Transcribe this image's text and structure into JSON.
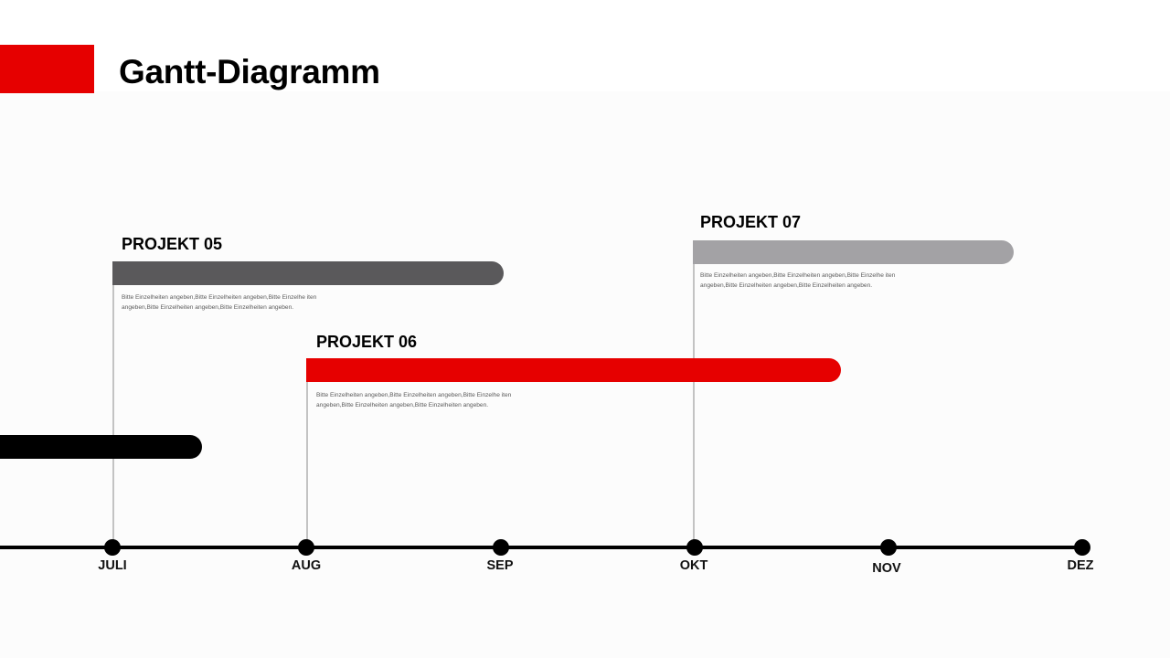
{
  "slide": {
    "title": "Gantt-Diagramm",
    "accent_color": "#e60000"
  },
  "timeline": {
    "months": [
      "JULI",
      "AUG",
      "SEP",
      "OKT",
      "NOV",
      "DEZ"
    ]
  },
  "projects": [
    {
      "label": "PROJEKT 05",
      "color": "#5a595b",
      "description": "Bitte Einzelheiten angeben,Bitte Einzelheiten angeben,Bitte Einzelhe iten angeben,Bitte Einzelheiten angeben,Bitte Einzelheiten angeben."
    },
    {
      "label": "PROJEKT 06",
      "color": "#e60000",
      "description": "Bitte Einzelheiten angeben,Bitte Einzelheiten angeben,Bitte Einzelhe iten angeben,Bitte Einzelheiten angeben,Bitte Einzelheiten angeben."
    },
    {
      "label": "PROJEKT 07",
      "color": "#a3a2a5",
      "description": "Bitte Einzelheiten angeben,Bitte Einzelheiten angeben,Bitte Einzelhe iten angeben,Bitte Einzelheiten angeben,Bitte Einzelheiten angeben."
    },
    {
      "color": "#000000"
    }
  ]
}
